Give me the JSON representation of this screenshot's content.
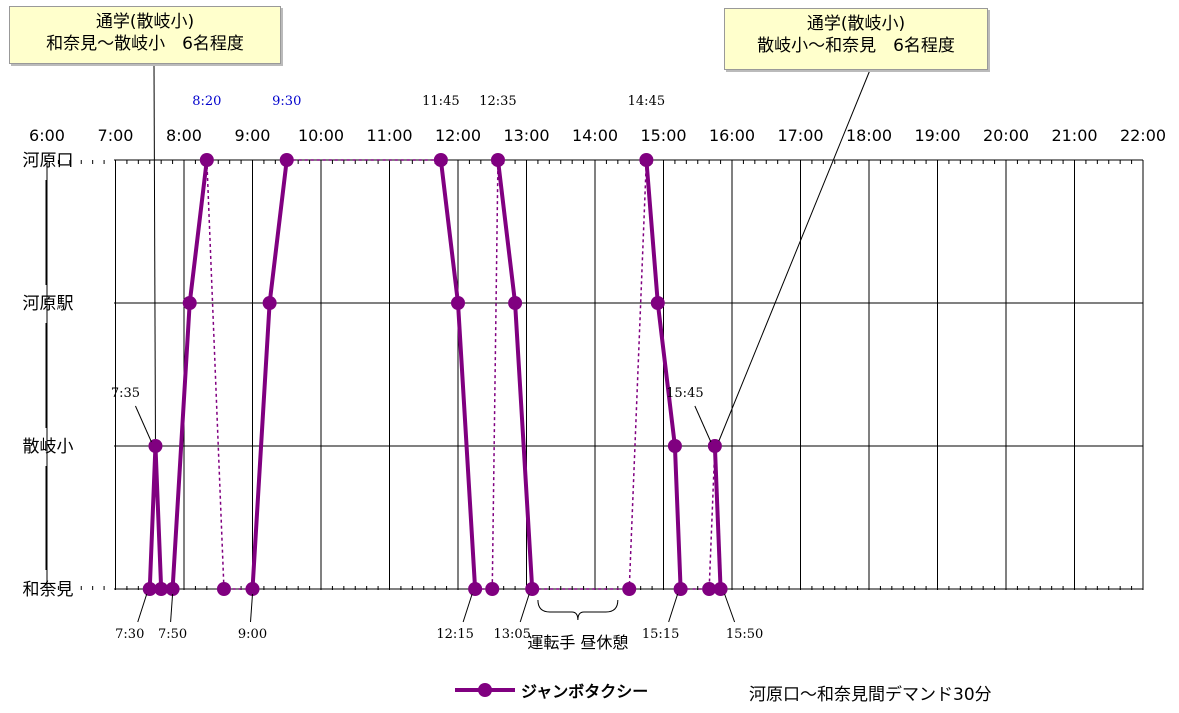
{
  "chart_data": {
    "type": "line",
    "title": "",
    "x_ticks": [
      "6:00",
      "7:00",
      "8:00",
      "9:00",
      "10:00",
      "11:00",
      "12:00",
      "13:00",
      "14:00",
      "15:00",
      "16:00",
      "17:00",
      "18:00",
      "19:00",
      "20:00",
      "21:00",
      "22:00"
    ],
    "stops": [
      "河原口",
      "河原駅",
      "散岐小",
      "和奈見"
    ],
    "xlim": [
      "6:00",
      "22:00"
    ],
    "grid": true,
    "series": [
      {
        "name": "ジャンボタクシー",
        "color": "#800080",
        "trips": [
          {
            "points": [
              {
                "time": "7:30",
                "stop": "和奈見"
              },
              {
                "time": "7:35",
                "stop": "散岐小"
              },
              {
                "time": "7:40",
                "stop": "和奈見"
              }
            ]
          },
          {
            "points": [
              {
                "time": "7:50",
                "stop": "和奈見"
              },
              {
                "time": "8:05",
                "stop": "河原駅"
              },
              {
                "time": "8:20",
                "stop": "河原口"
              }
            ]
          },
          {
            "points": [
              {
                "time": "9:00",
                "stop": "和奈見"
              },
              {
                "time": "9:15",
                "stop": "河原駅"
              },
              {
                "time": "9:30",
                "stop": "河原口"
              }
            ]
          },
          {
            "points": [
              {
                "time": "11:45",
                "stop": "河原口"
              },
              {
                "time": "12:00",
                "stop": "河原駅"
              },
              {
                "time": "12:15",
                "stop": "和奈見"
              }
            ]
          },
          {
            "points": [
              {
                "time": "12:35",
                "stop": "河原口"
              },
              {
                "time": "12:50",
                "stop": "河原駅"
              },
              {
                "time": "13:05",
                "stop": "和奈見"
              }
            ]
          },
          {
            "points": [
              {
                "time": "14:45",
                "stop": "河原口"
              },
              {
                "time": "14:55",
                "stop": "河原駅"
              },
              {
                "time": "15:10",
                "stop": "散岐小"
              },
              {
                "time": "15:15",
                "stop": "和奈見"
              }
            ]
          },
          {
            "points": [
              {
                "time": "15:45",
                "stop": "散岐小"
              },
              {
                "time": "15:50",
                "stop": "和奈見"
              }
            ]
          }
        ],
        "deadhead": [
          {
            "points": [
              {
                "time": "7:40",
                "stop": "和奈見"
              },
              {
                "time": "7:50",
                "stop": "和奈見"
              }
            ]
          },
          {
            "points": [
              {
                "time": "8:20",
                "stop": "河原口"
              },
              {
                "time": "8:35",
                "stop": "和奈見"
              },
              {
                "time": "9:00",
                "stop": "和奈見"
              }
            ]
          },
          {
            "points": [
              {
                "time": "9:30",
                "stop": "河原口"
              },
              {
                "time": "11:45",
                "stop": "河原口"
              }
            ]
          },
          {
            "points": [
              {
                "time": "12:15",
                "stop": "和奈見"
              },
              {
                "time": "12:30",
                "stop": "和奈見"
              },
              {
                "time": "12:35",
                "stop": "河原口"
              }
            ]
          },
          {
            "points": [
              {
                "time": "13:05",
                "stop": "和奈見"
              },
              {
                "time": "14:30",
                "stop": "和奈見"
              },
              {
                "time": "14:45",
                "stop": "河原口"
              }
            ]
          },
          {
            "points": [
              {
                "time": "15:15",
                "stop": "和奈見"
              },
              {
                "time": "15:40",
                "stop": "和奈見"
              },
              {
                "time": "15:45",
                "stop": "散岐小"
              }
            ]
          }
        ]
      }
    ],
    "time_labels": [
      {
        "text": "8:20",
        "time": "8:20",
        "stop": "河原口",
        "pos": "above",
        "color": "#0000cc"
      },
      {
        "text": "9:30",
        "time": "9:30",
        "stop": "河原口",
        "pos": "above",
        "color": "#0000cc"
      },
      {
        "text": "11:45",
        "time": "11:45",
        "stop": "河原口",
        "pos": "above",
        "color": "#000000"
      },
      {
        "text": "12:35",
        "time": "12:35",
        "stop": "河原口",
        "pos": "above",
        "color": "#000000"
      },
      {
        "text": "14:45",
        "time": "14:45",
        "stop": "河原口",
        "pos": "above",
        "color": "#000000"
      },
      {
        "text": "7:35",
        "time": "7:35",
        "stop": "散岐小",
        "pos": "above-left",
        "color": "#000000"
      },
      {
        "text": "15:45",
        "time": "15:45",
        "stop": "散岐小",
        "pos": "above-left",
        "color": "#000000"
      },
      {
        "text": "7:30",
        "time": "7:30",
        "stop": "和奈見",
        "pos": "below-left",
        "color": "#000000"
      },
      {
        "text": "7:50",
        "time": "7:50",
        "stop": "和奈見",
        "pos": "below",
        "color": "#000000"
      },
      {
        "text": "9:00",
        "time": "9:00",
        "stop": "和奈見",
        "pos": "below",
        "color": "#000000"
      },
      {
        "text": "12:15",
        "time": "12:15",
        "stop": "和奈見",
        "pos": "below-left",
        "color": "#000000"
      },
      {
        "text": "13:05",
        "time": "13:05",
        "stop": "和奈見",
        "pos": "below-left",
        "color": "#000000"
      },
      {
        "text": "15:15",
        "time": "15:15",
        "stop": "和奈見",
        "pos": "below-left",
        "color": "#000000"
      },
      {
        "text": "15:50",
        "time": "15:50",
        "stop": "和奈見",
        "pos": "below-right",
        "color": "#000000"
      }
    ],
    "break": {
      "text": "運転手 昼休憩",
      "from": "13:10",
      "to": "14:20",
      "stop": "和奈見"
    },
    "callouts": [
      {
        "lines": [
          "通学(散岐小)",
          "和奈見～散岐小　6名程度"
        ],
        "target": {
          "time": "7:35",
          "stop": "散岐小"
        }
      },
      {
        "lines": [
          "通学(散岐小)",
          "散岐小～和奈見　6名程度"
        ],
        "target": {
          "time": "15:45",
          "stop": "散岐小"
        }
      }
    ],
    "legend": {
      "series": "ジャンボタクシー",
      "note": "河原口～和奈見間デマンド30分"
    },
    "colors": {
      "series": "#800080",
      "highlight": "#0000cc",
      "callout_bg": "#ffffcc"
    }
  }
}
